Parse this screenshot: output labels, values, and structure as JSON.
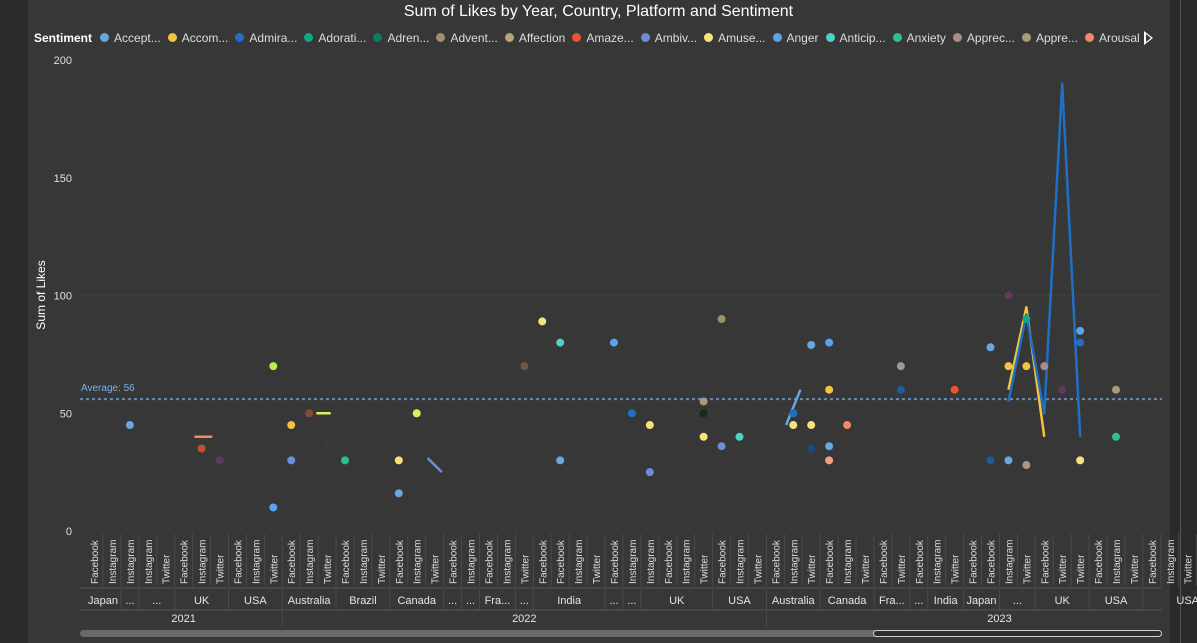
{
  "chart_data": {
    "type": "line",
    "title": "Sum of Likes by Year, Country, Platform and Sentiment",
    "ylabel": "Sum of Likes",
    "xlabel": "",
    "ylim": [
      0,
      200
    ],
    "yticks": [
      0,
      50,
      100,
      150,
      200
    ],
    "grid": true,
    "legend": {
      "title": "Sentiment",
      "placement": "top",
      "items": [
        {
          "label": "Accept...",
          "color": "#6aa6e0"
        },
        {
          "label": "Accom...",
          "color": "#f5c342"
        },
        {
          "label": "Admira...",
          "color": "#1f6fc5"
        },
        {
          "label": "Adorati...",
          "color": "#13a885"
        },
        {
          "label": "Adren...",
          "color": "#0e7a68"
        },
        {
          "label": "Advent...",
          "color": "#a08f6b"
        },
        {
          "label": "Affection",
          "color": "#b8a478"
        },
        {
          "label": "Amaze...",
          "color": "#e8552e"
        },
        {
          "label": "Ambiv...",
          "color": "#6b8fd6"
        },
        {
          "label": "Amuse...",
          "color": "#f7e37a"
        },
        {
          "label": "Anger",
          "color": "#5aa3f0"
        },
        {
          "label": "Anticip...",
          "color": "#4fd1c5"
        },
        {
          "label": "Anxiety",
          "color": "#2fbf8a"
        },
        {
          "label": "Apprec...",
          "color": "#a98d84"
        },
        {
          "label": "Appre...",
          "color": "#a99a7e"
        },
        {
          "label": "Arousal",
          "color": "#f08a60"
        }
      ]
    },
    "average": {
      "label": "Average: 56",
      "value": 56
    },
    "categories": [
      "Facebook",
      "Instagram",
      "Instagram",
      "Instagram",
      "Twitter",
      "Facebook",
      "Instagram",
      "Twitter",
      "Facebook",
      "Instagram",
      "Twitter",
      "Facebook",
      "Instagram",
      "Twitter",
      "Facebook",
      "Instagram",
      "Twitter",
      "Facebook",
      "Instagram",
      "Twitter",
      "Facebook",
      "Instagram",
      "Facebook",
      "Instagram",
      "Twitter",
      "Facebook",
      "Facebook",
      "Instagram",
      "Twitter",
      "Facebook",
      "Instagram",
      "Instagram",
      "Facebook",
      "Instagram",
      "Twitter",
      "Facebook",
      "Instagram",
      "Twitter",
      "Facebook",
      "Instagram",
      "Twitter",
      "Facebook",
      "Instagram",
      "Twitter",
      "Facebook",
      "Twitter",
      "Facebook",
      "Instagram",
      "Twitter",
      "Facebook",
      "Facebook",
      "Instagram",
      "Twitter",
      "Facebook",
      "Twitter",
      "Twitter",
      "Facebook",
      "Instagram",
      "Twitter",
      "Facebook",
      "Instagram",
      "Twitter",
      "Facebook",
      "Instagram"
    ],
    "country_groups": [
      {
        "label": "Japan",
        "start": 0,
        "end": 1
      },
      {
        "label": "...",
        "start": 2,
        "end": 2
      },
      {
        "label": "...",
        "start": 3,
        "end": 4
      },
      {
        "label": "UK",
        "start": 5,
        "end": 7
      },
      {
        "label": "USA",
        "start": 8,
        "end": 10
      },
      {
        "label": "Australia",
        "start": 11,
        "end": 13
      },
      {
        "label": "Brazil",
        "start": 14,
        "end": 16
      },
      {
        "label": "Canada",
        "start": 17,
        "end": 19
      },
      {
        "label": "...",
        "start": 20,
        "end": 20
      },
      {
        "label": "...",
        "start": 21,
        "end": 21
      },
      {
        "label": "Fra...",
        "start": 22,
        "end": 23
      },
      {
        "label": "...",
        "start": 24,
        "end": 24
      },
      {
        "label": "India",
        "start": 25,
        "end": 28
      },
      {
        "label": "...",
        "start": 29,
        "end": 29
      },
      {
        "label": "...",
        "start": 30,
        "end": 30
      },
      {
        "label": "UK",
        "start": 31,
        "end": 34
      },
      {
        "label": "USA",
        "start": 35,
        "end": 37
      },
      {
        "label": "Australia",
        "start": 38,
        "end": 40
      },
      {
        "label": "Canada",
        "start": 41,
        "end": 43
      },
      {
        "label": "Fra...",
        "start": 44,
        "end": 45
      },
      {
        "label": "...",
        "start": 46,
        "end": 46
      },
      {
        "label": "India",
        "start": 47,
        "end": 48
      },
      {
        "label": "Japan",
        "start": 49,
        "end": 50
      },
      {
        "label": "...",
        "start": 51,
        "end": 52
      },
      {
        "label": "UK",
        "start": 53,
        "end": 55
      },
      {
        "label": "USA",
        "start": 56,
        "end": 58
      },
      {
        "label": "USA",
        "start": 59,
        "end": 63
      }
    ],
    "year_groups": [
      {
        "label": "2021",
        "start": 0,
        "end": 10
      },
      {
        "label": "2022",
        "start": 11,
        "end": 37
      },
      {
        "label": "2023",
        "start": 38,
        "end": 63
      }
    ],
    "points": [
      {
        "x": 2,
        "y": 45,
        "color": "#6aa6e0"
      },
      {
        "x": 6,
        "y": 35,
        "color": "#c0522c"
      },
      {
        "x": 7,
        "y": 30,
        "color": "#5e3a5a"
      },
      {
        "x": 10,
        "y": 70,
        "color": "#b8f04a"
      },
      {
        "x": 10,
        "y": 10,
        "color": "#5aa3f0"
      },
      {
        "x": 11,
        "y": 45,
        "color": "#f5c342"
      },
      {
        "x": 11,
        "y": 30,
        "color": "#6b8fd6"
      },
      {
        "x": 12,
        "y": 50,
        "color": "#8a4a32"
      },
      {
        "x": 13,
        "y": 36,
        "color": "#3a3a3a"
      },
      {
        "x": 14,
        "y": 30,
        "color": "#2fbf8a"
      },
      {
        "x": 17,
        "y": 30,
        "color": "#f7e37a"
      },
      {
        "x": 17,
        "y": 16,
        "color": "#6aa6e0"
      },
      {
        "x": 18,
        "y": 50,
        "color": "#d6f55a"
      },
      {
        "x": 24,
        "y": 70,
        "color": "#6b5a45"
      },
      {
        "x": 25,
        "y": 89,
        "color": "#f7e37a"
      },
      {
        "x": 26,
        "y": 80,
        "color": "#4fd1c5"
      },
      {
        "x": 26,
        "y": 30,
        "color": "#6aa6e0"
      },
      {
        "x": 29,
        "y": 80,
        "color": "#5aa3f0"
      },
      {
        "x": 30,
        "y": 50,
        "color": "#1f6fc5"
      },
      {
        "x": 31,
        "y": 45,
        "color": "#f7e37a"
      },
      {
        "x": 31,
        "y": 25,
        "color": "#6b8fd6"
      },
      {
        "x": 34,
        "y": 55,
        "color": "#a99a7e"
      },
      {
        "x": 34,
        "y": 50,
        "color": "#1a2a1a"
      },
      {
        "x": 34,
        "y": 40,
        "color": "#f7e37a"
      },
      {
        "x": 35,
        "y": 90,
        "color": "#a08f6b"
      },
      {
        "x": 35,
        "y": 36,
        "color": "#6b8fd6"
      },
      {
        "x": 36,
        "y": 40,
        "color": "#4fd1c5"
      },
      {
        "x": 39,
        "y": 50,
        "color": "#1f6fc5"
      },
      {
        "x": 39,
        "y": 45,
        "color": "#f7e37a"
      },
      {
        "x": 40,
        "y": 79,
        "color": "#6aa6e0"
      },
      {
        "x": 40,
        "y": 45,
        "color": "#f7e37a"
      },
      {
        "x": 40,
        "y": 35,
        "color": "#1a4a7a"
      },
      {
        "x": 41,
        "y": 80,
        "color": "#5aa3f0"
      },
      {
        "x": 41,
        "y": 60,
        "color": "#f5c342"
      },
      {
        "x": 41,
        "y": 36,
        "color": "#6aa6e0"
      },
      {
        "x": 41,
        "y": 30,
        "color": "#f0a080"
      },
      {
        "x": 42,
        "y": 45,
        "color": "#f08a60"
      },
      {
        "x": 45,
        "y": 70,
        "color": "#9a9a9a"
      },
      {
        "x": 45,
        "y": 60,
        "color": "#1f5aa0"
      },
      {
        "x": 48,
        "y": 60,
        "color": "#e8552e"
      },
      {
        "x": 50,
        "y": 78,
        "color": "#6aa6e0"
      },
      {
        "x": 50,
        "y": 30,
        "color": "#1f5aa0"
      },
      {
        "x": 51,
        "y": 100,
        "color": "#5e3a5a"
      },
      {
        "x": 51,
        "y": 70,
        "color": "#f5c342"
      },
      {
        "x": 51,
        "y": 30,
        "color": "#6aa6e0"
      },
      {
        "x": 52,
        "y": 90,
        "color": "#13a885"
      },
      {
        "x": 52,
        "y": 70,
        "color": "#f5c342"
      },
      {
        "x": 52,
        "y": 28,
        "color": "#a99a7e"
      },
      {
        "x": 53,
        "y": 70,
        "color": "#a98d84"
      },
      {
        "x": 54,
        "y": 60,
        "color": "#5e3a5a"
      },
      {
        "x": 55,
        "y": 85,
        "color": "#5aa3f0"
      },
      {
        "x": 55,
        "y": 80,
        "color": "#1f6fc5"
      },
      {
        "x": 55,
        "y": 30,
        "color": "#f7e37a"
      },
      {
        "x": 57,
        "y": 60,
        "color": "#a99a7e"
      },
      {
        "x": 57,
        "y": 40,
        "color": "#2fbf8a"
      }
    ],
    "series": [
      {
        "color": "#f08a60",
        "points": [
          [
            5.6,
            40
          ],
          [
            6.6,
            40
          ]
        ]
      },
      {
        "color": "#d6f55a",
        "points": [
          [
            12.4,
            50
          ],
          [
            13.2,
            50
          ]
        ]
      },
      {
        "color": "#6b8fd6",
        "points": [
          [
            18.6,
            31
          ],
          [
            19.4,
            25
          ]
        ]
      },
      {
        "color": "#6aa6e0",
        "points": [
          [
            38.6,
            45
          ],
          [
            39.4,
            60
          ]
        ]
      },
      {
        "color": "#f5c342",
        "points": [
          [
            51,
            60
          ],
          [
            52,
            95
          ],
          [
            53,
            40
          ]
        ]
      },
      {
        "color": "#1f6fc5",
        "points": [
          [
            51,
            55
          ],
          [
            52,
            92
          ],
          [
            53,
            50
          ],
          [
            54,
            190
          ],
          [
            55,
            40
          ]
        ]
      }
    ]
  }
}
